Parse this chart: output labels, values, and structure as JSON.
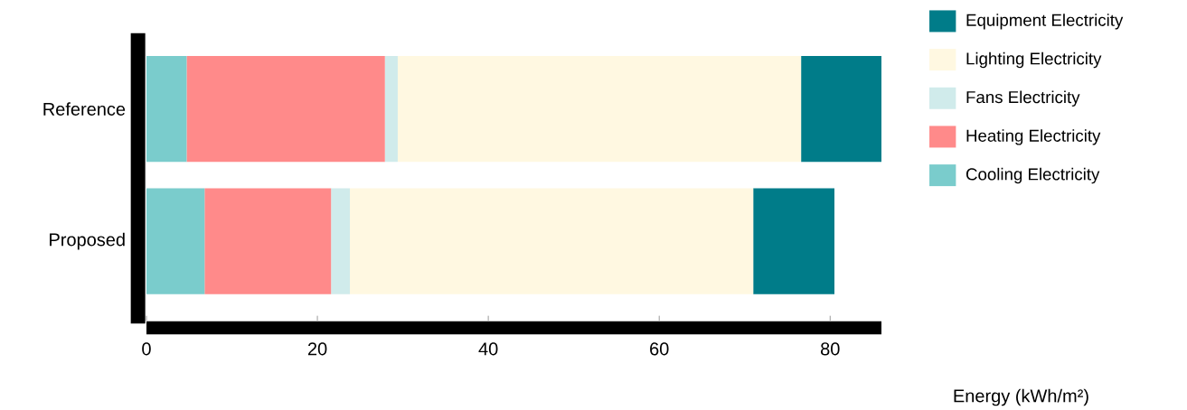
{
  "chart_data": {
    "type": "bar",
    "orientation": "horizontal",
    "stacked": true,
    "categories": [
      "Reference",
      "Proposed"
    ],
    "series": [
      {
        "name": "Cooling Electricity",
        "color": "#7acccc",
        "values": [
          4.7,
          6.8
        ]
      },
      {
        "name": "Heating Electricity",
        "color": "#ff8a8a",
        "values": [
          23.2,
          14.8
        ]
      },
      {
        "name": "Fans Electricity",
        "color": "#d0ebeb",
        "values": [
          1.5,
          2.2
        ]
      },
      {
        "name": "Lighting Electricity",
        "color": "#fff8e1",
        "values": [
          47.2,
          47.2
        ]
      },
      {
        "name": "Equipment Electricity",
        "color": "#007c89",
        "values": [
          9.4,
          9.5
        ]
      }
    ],
    "xlim": [
      0,
      86
    ],
    "xticks": [
      0,
      20,
      40,
      60,
      80
    ],
    "xlabel": "Energy (kWh/m²)",
    "grid": false,
    "legend": "top right"
  }
}
